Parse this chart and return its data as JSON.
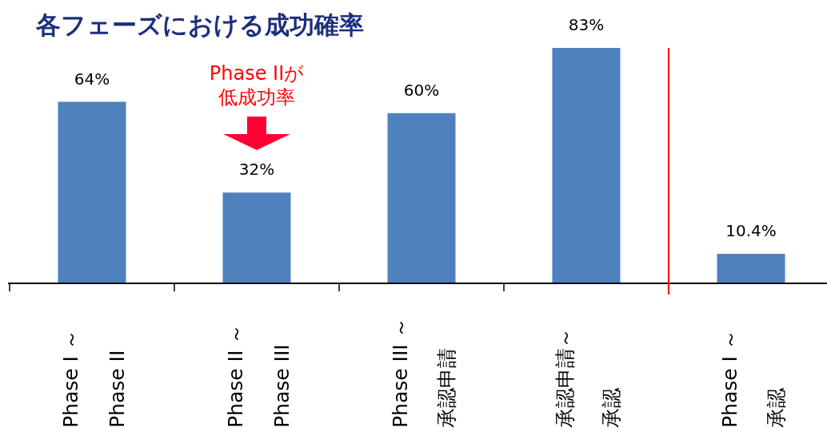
{
  "chart_data": [
    {
      "type": "bar",
      "title": "各フェーズにおける成功確率",
      "categories": [
        "Phase I ～Phase II",
        "Phase II ～Phase III",
        "Phase III ～承認申請",
        "承認申請～承認"
      ],
      "values": [
        64,
        32,
        60,
        83
      ],
      "value_labels": [
        "64%",
        "32%",
        "60%",
        "83%"
      ],
      "color": "#4f81bd",
      "annotations": [
        "Phase IIが低成功率"
      ]
    },
    {
      "type": "bar",
      "categories": [
        "Phase I ～承認"
      ],
      "values": [
        10.4
      ],
      "value_labels": [
        "10.4%"
      ],
      "color": "#4f81bd"
    }
  ]
}
